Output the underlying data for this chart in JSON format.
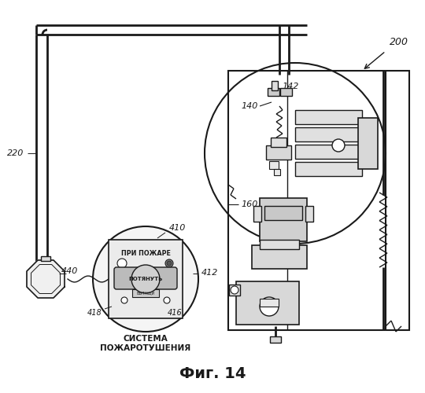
{
  "title": "Фиг. 14",
  "bg_color": "#ffffff",
  "line_color": "#1a1a1a",
  "label_200": "200",
  "label_220": "220",
  "label_140": "140",
  "label_142": "142",
  "label_160": "160",
  "label_440": "440",
  "label_410": "410",
  "label_412": "412",
  "label_416": "416",
  "label_418": "418",
  "text_pri_pozhar": "ПРИ ПОЖАРЕ",
  "text_potyanut": "ПОТЯНУТЬ",
  "text_sistema": "СИСТЕМА",
  "text_pozharotushenia": "ПОЖАРОТУШЕНИЯ"
}
